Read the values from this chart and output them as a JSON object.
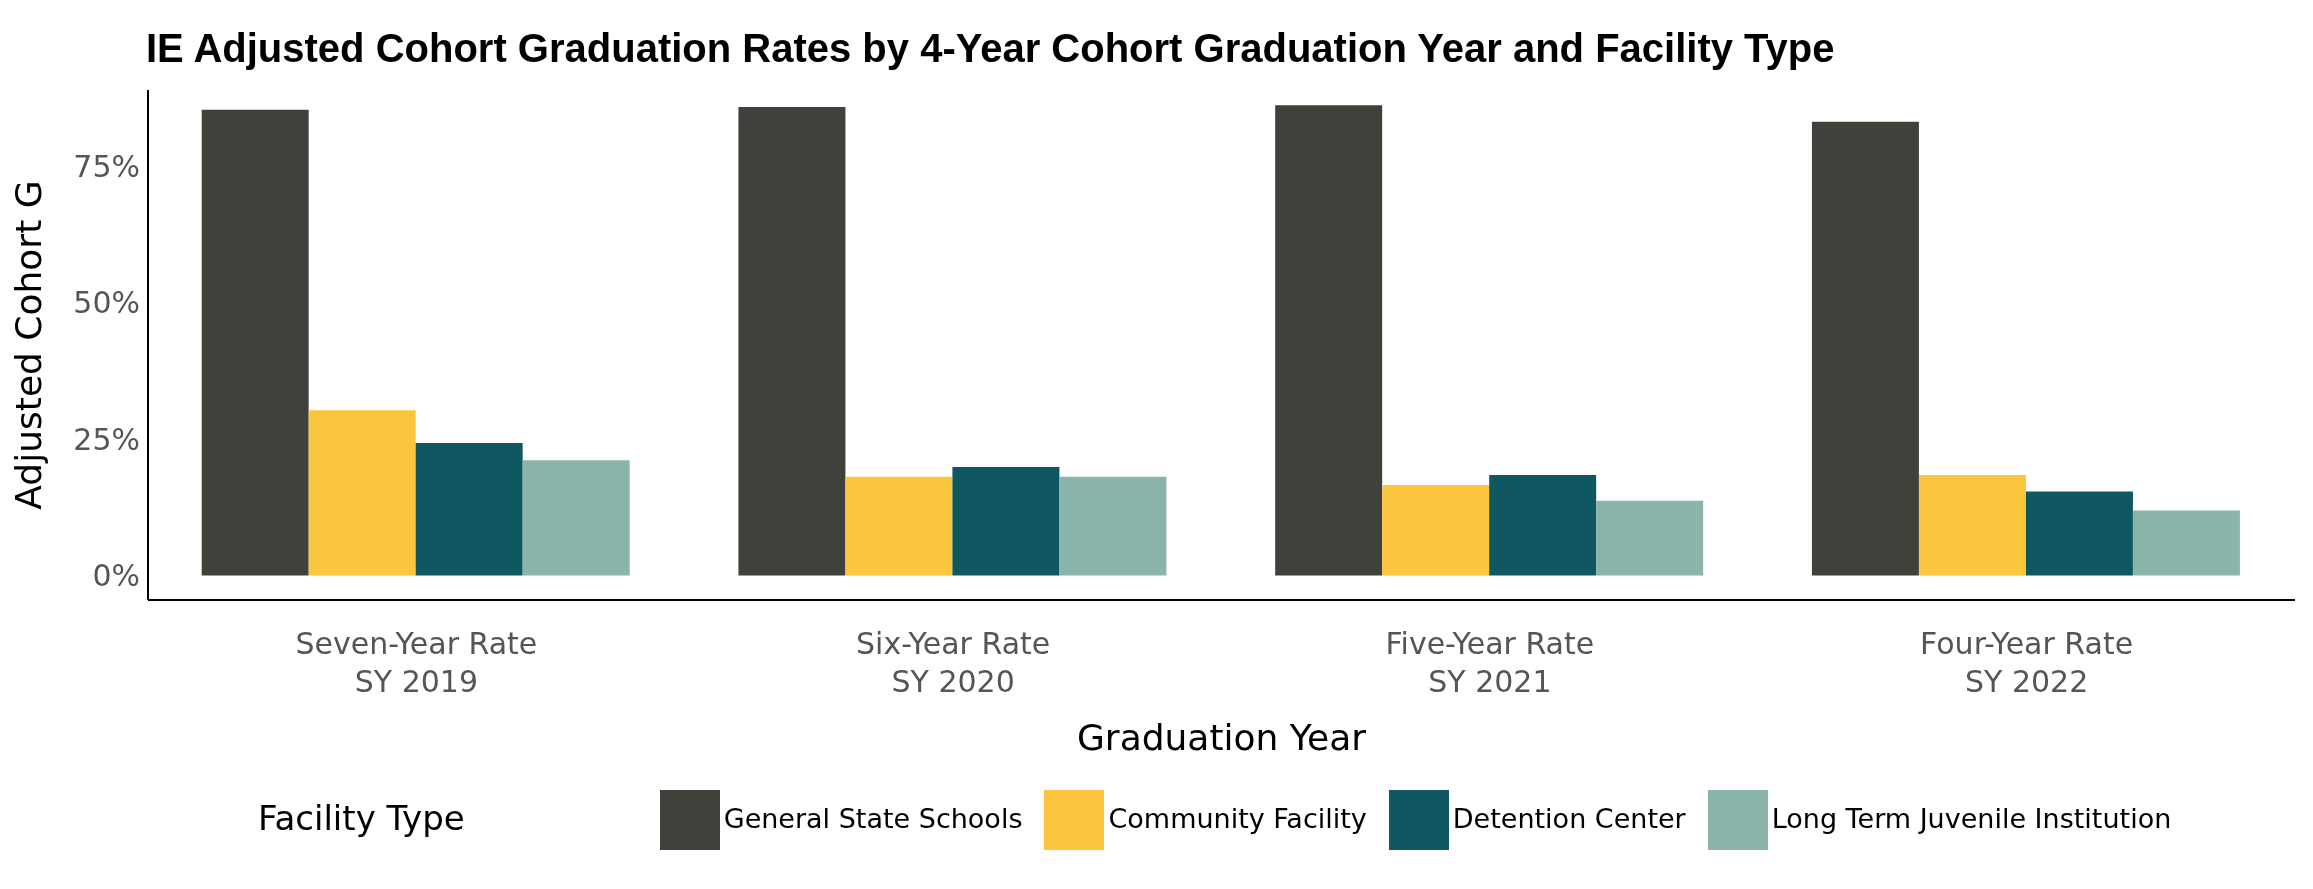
{
  "chart_data": {
    "type": "bar",
    "title": "IE Adjusted Cohort Graduation Rates by 4-Year Cohort Graduation Year and Facility Type",
    "xlabel": "Graduation Year",
    "ylabel": "Adjusted Cohort G",
    "legend_title": "Facility Type",
    "categories": [
      "Seven-Year Rate\nSY 2019",
      "Six-Year Rate\nSY 2020",
      "Five-Year Rate\nSY 2021",
      "Four-Year Rate\nSY 2022"
    ],
    "series": [
      {
        "name": "General State Schools",
        "color": "#41413c",
        "values": [
          85.4,
          85.9,
          86.2,
          83.2
        ]
      },
      {
        "name": "Community Facility",
        "color": "#fbc63d",
        "values": [
          30.3,
          18.1,
          16.6,
          18.4
        ]
      },
      {
        "name": "Detention Center",
        "color": "#0f5862",
        "values": [
          24.3,
          19.9,
          18.4,
          15.4
        ]
      },
      {
        "name": "Long Term Juvenile Institution",
        "color": "#8bb4aa",
        "values": [
          21.1,
          18.1,
          13.7,
          11.9
        ]
      }
    ],
    "ylim": [
      -4.5,
      89
    ],
    "yticks": [
      {
        "value": 0,
        "label": "0%"
      },
      {
        "value": 25,
        "label": "25%"
      },
      {
        "value": 50,
        "label": "50%"
      },
      {
        "value": 75,
        "label": "75%"
      }
    ],
    "grid": false,
    "legend": "bottom"
  }
}
